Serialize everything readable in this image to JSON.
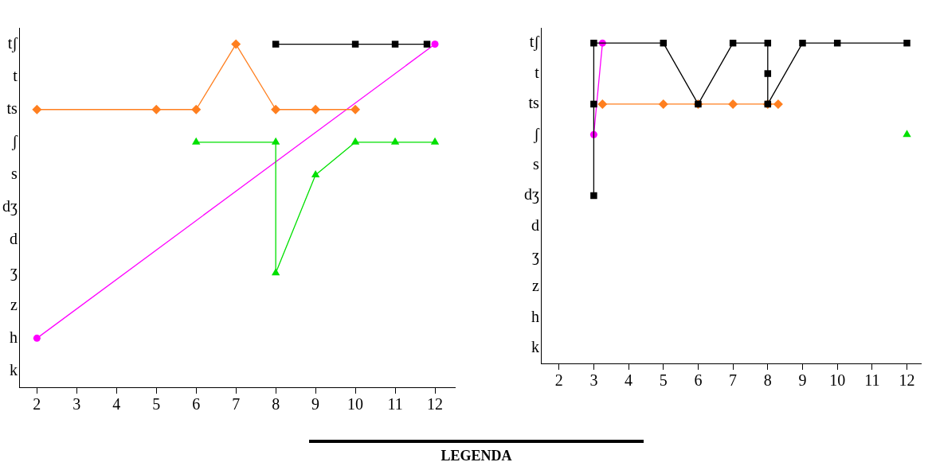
{
  "chart_data": [
    {
      "type": "line",
      "orientation": "horizontal",
      "xlim": [
        1.57,
        12.5
      ],
      "grid": false,
      "legend": false,
      "line_style": "solid",
      "xticks": [
        2,
        3,
        4,
        5,
        6,
        7,
        8,
        9,
        10,
        11,
        12
      ],
      "categories": [
        "tʃ",
        "t",
        "ts",
        "ʃ",
        "s",
        "dʒ",
        "d",
        "ʒ",
        "z",
        "h",
        "k"
      ],
      "series": [
        {
          "color": "#000000",
          "marker": "square",
          "x": [
            "tʃ",
            "tʃ",
            "tʃ",
            "tʃ"
          ],
          "values": [
            8,
            10,
            11,
            11.8
          ]
        },
        {
          "color": "#ff7f1f",
          "marker": "diamond",
          "x": [
            "ts",
            "ts",
            "ts",
            "tʃ",
            "ts",
            "ts",
            "ts"
          ],
          "values": [
            2,
            5,
            6,
            7,
            8,
            9,
            10
          ]
        },
        {
          "color": "#00e000",
          "marker": "triangle",
          "x": [
            "ʃ",
            "ʃ",
            "ʒ",
            "s",
            "ʃ",
            "ʃ",
            "ʃ"
          ],
          "values": [
            6,
            8,
            8,
            9,
            10,
            11,
            12
          ]
        },
        {
          "color": "#ff00ff",
          "marker": "circle",
          "x": [
            "h",
            "tʃ"
          ],
          "values": [
            2,
            12
          ]
        }
      ],
      "annotations": [
        "LEGENDA"
      ]
    },
    {
      "type": "line",
      "orientation": "horizontal",
      "xlim": [
        1.5,
        12.4
      ],
      "grid": false,
      "legend": false,
      "line_style": "solid",
      "xticks": [
        2,
        3,
        4,
        5,
        6,
        7,
        8,
        9,
        10,
        11,
        12
      ],
      "categories": [
        "tʃ",
        "t",
        "ts",
        "ʃ",
        "s",
        "dʒ",
        "d",
        "ʒ",
        "z",
        "h",
        "k"
      ],
      "series": [
        {
          "color": "#000000",
          "marker": "square",
          "x": [
            "dʒ",
            "ts",
            "tʃ",
            "tʃ",
            "ts",
            "tʃ",
            "tʃ",
            "t",
            "ts",
            "tʃ",
            "tʃ",
            "tʃ"
          ],
          "values": [
            3,
            3,
            3,
            5,
            6,
            7,
            8,
            8,
            8,
            9,
            10,
            12
          ]
        },
        {
          "color": "#ff00ff",
          "marker": "circle",
          "x": [
            "ʃ",
            "tʃ"
          ],
          "values": [
            3,
            3.25
          ]
        },
        {
          "color": "#ff7f1f",
          "marker": "diamond",
          "x": [
            "ts",
            "ts",
            "ts",
            "ts",
            "ts",
            "ts"
          ],
          "values": [
            3.25,
            5,
            6,
            7,
            8,
            8.3
          ]
        },
        {
          "color": "#00e000",
          "type": "scatter",
          "marker": "triangle",
          "x": [
            "ʃ"
          ],
          "values": [
            12
          ]
        }
      ]
    }
  ]
}
